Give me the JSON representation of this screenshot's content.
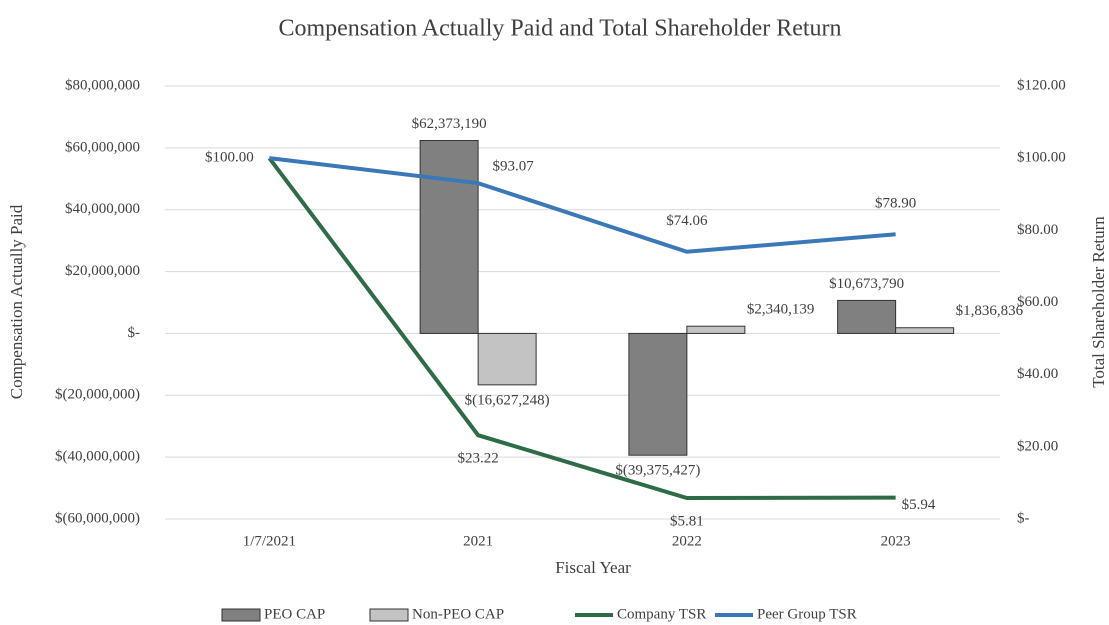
{
  "chart_data": {
    "type": "bar_line",
    "title": "Compensation Actually Paid and Total Shareholder Return",
    "xlabel": "Fiscal Year",
    "ylabel": "Compensation Actually Paid",
    "y2label": "Total Shareholder Return",
    "categories": [
      "1/7/2021",
      "2021",
      "2022",
      "2023"
    ],
    "series": [
      {
        "name": "PEO CAP",
        "type": "bar",
        "color": "#808080",
        "values": [
          null,
          62373190,
          -39375427,
          10673790
        ],
        "value_labels": [
          null,
          "$62,373,190",
          "$(39,375,427)",
          "$10,673,790"
        ]
      },
      {
        "name": "Non-PEO CAP",
        "type": "bar",
        "color": "#c3c3c3",
        "values": [
          null,
          -16627248,
          2340139,
          1836836
        ],
        "value_labels": [
          null,
          "$(16,627,248)",
          "$2,340,139",
          "$1,836,836"
        ]
      },
      {
        "name": "Company TSR",
        "type": "line",
        "axis": "y2",
        "color": "#2e6b47",
        "values": [
          100,
          23.22,
          5.81,
          5.94
        ],
        "value_labels": [
          null,
          "$23.22",
          "$5.81",
          "$5.94"
        ]
      },
      {
        "name": "Peer Group TSR",
        "type": "line",
        "axis": "y2",
        "color": "#3a78b8",
        "values": [
          100,
          93.07,
          74.06,
          78.9
        ],
        "value_labels": [
          "$100.00",
          "$93.07",
          "$74.06",
          "$78.90"
        ]
      }
    ],
    "ylim": [
      -60000000,
      80000000
    ],
    "yticks": [
      {
        "value": -60000000,
        "label": "$(60,000,000)"
      },
      {
        "value": -40000000,
        "label": "$(40,000,000)"
      },
      {
        "value": -20000000,
        "label": "$(20,000,000)"
      },
      {
        "value": 0,
        "label": "$-"
      },
      {
        "value": 20000000,
        "label": "$20,000,000"
      },
      {
        "value": 40000000,
        "label": "$40,000,000"
      },
      {
        "value": 60000000,
        "label": "$60,000,000"
      },
      {
        "value": 80000000,
        "label": "$80,000,000"
      }
    ],
    "y2lim": [
      0,
      120
    ],
    "y2ticks": [
      {
        "value": 0,
        "label": "$-"
      },
      {
        "value": 20,
        "label": "$20.00"
      },
      {
        "value": 40,
        "label": "$40.00"
      },
      {
        "value": 60,
        "label": "$60.00"
      },
      {
        "value": 80,
        "label": "$80.00"
      },
      {
        "value": 100,
        "label": "$100.00"
      },
      {
        "value": 120,
        "label": "$120.00"
      }
    ],
    "grid": true,
    "legend": "bottom"
  }
}
